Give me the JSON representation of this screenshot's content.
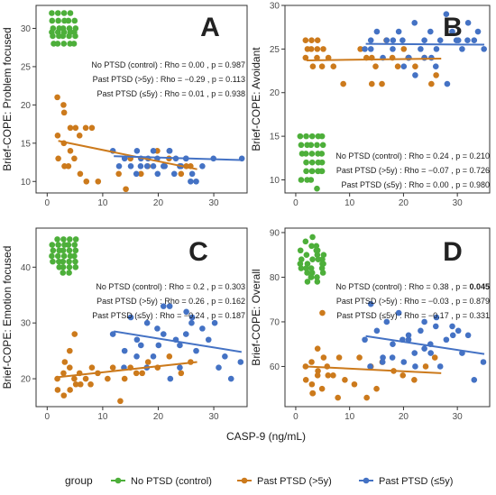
{
  "chart_data": {
    "xlabel": "CASP-9 (ng/mL)",
    "legend": {
      "title": "group",
      "position": "bottom",
      "entries": [
        "No PTSD (control)",
        "Past PTSD (>5y)",
        "Past PTSD (≤5y)"
      ]
    },
    "colors": {
      "No PTSD (control)": "#4daf3a",
      "Past PTSD (>5y)": "#cc7a1c",
      "Past PTSD (≤5y)": "#4472c4"
    },
    "panels": [
      {
        "letter": "A",
        "type": "scatter",
        "ylabel": "Brief-COPE: Problem focused",
        "xlim": [
          -2,
          36
        ],
        "ylim": [
          8.5,
          33
        ],
        "xticks": [
          0,
          10,
          20,
          30
        ],
        "yticks": [
          10,
          15,
          20,
          25,
          30
        ],
        "annotations": [
          {
            "pre": "No PTSD (control) : Rho = 0.00 , p = ",
            "p": "0.987",
            "bold": false
          },
          {
            "pre": "Past PTSD (>5y) : Rho = −0.29 , p = ",
            "p": "0.113",
            "bold": false
          },
          {
            "pre": "Past PTSD (≤5y) : Rho = 0.01 , p = ",
            "p": "0.938",
            "bold": false
          }
        ],
        "series": [
          {
            "name": "No PTSD (control)",
            "x": [
              1,
              2,
              3,
              4,
              1,
              2,
              3,
              4,
              5,
              1,
              2,
              3,
              4,
              5,
              1,
              2,
              3,
              4,
              5,
              1,
              2,
              3,
              4,
              5,
              1,
              2,
              3,
              4,
              5
            ],
            "y": [
              32,
              32,
              32,
              32,
              31,
              31,
              31,
              31,
              31,
              30,
              30,
              30,
              30,
              30,
              29.5,
              29.5,
              29.5,
              29.5,
              29.5,
              29,
              29,
              29,
              29,
              29,
              28,
              28,
              28,
              28,
              28
            ],
            "fit": null
          },
          {
            "name": "Past PTSD (>5y)",
            "x": [
              2,
              3,
              3,
              4,
              2,
              3,
              5,
              6,
              7,
              8,
              4,
              5,
              2,
              3,
              4,
              6,
              7,
              9,
              13,
              15,
              18,
              20,
              22,
              25,
              14,
              17,
              21,
              24,
              26
            ],
            "y": [
              21,
              20,
              19,
              17,
              16,
              15,
              17,
              16,
              17,
              17,
              14,
              13,
              13,
              12,
              12,
              11,
              10,
              10,
              11,
              13,
              12,
              14,
              13,
              12,
              9,
              11,
              12,
              11,
              12
            ],
            "fit": {
              "x": [
                2,
                27
              ],
              "y": [
                15.3,
                11.6
              ]
            }
          },
          {
            "name": "Past PTSD (≤5y)",
            "x": [
              12,
              14,
              15,
              16,
              17,
              18,
              19,
              20,
              21,
              22,
              23,
              24,
              25,
              26,
              27,
              28,
              16,
              18,
              20,
              22,
              24,
              26,
              30,
              35,
              21,
              23,
              25,
              19,
              17,
              13
            ],
            "y": [
              14,
              13,
              12,
              14,
              13,
              12,
              14,
              13,
              12,
              14,
              13,
              12,
              13,
              11,
              10,
              12,
              11,
              13,
              11,
              14,
              12,
              10,
              13,
              13,
              12,
              11,
              13,
              12,
              12,
              12
            ],
            "fit": {
              "x": [
                12,
                35
              ],
              "y": [
                13.3,
                12.8
              ]
            }
          }
        ]
      },
      {
        "letter": "B",
        "type": "scatter",
        "ylabel": "Brief-COPE: Avoidant",
        "xlim": [
          -2,
          36
        ],
        "ylim": [
          8.5,
          30
        ],
        "xticks": [
          0,
          10,
          20,
          30
        ],
        "yticks": [
          10,
          15,
          20,
          25,
          30
        ],
        "annotations": [
          {
            "pre": "No PTSD (control) : Rho = 0.24 , p = ",
            "p": "0.210",
            "bold": false
          },
          {
            "pre": "Past PTSD (>5y) : Rho = −0.07 , p = ",
            "p": "0.726",
            "bold": false
          },
          {
            "pre": "Past PTSD (≤5y) : Rho = 0.00 , p = ",
            "p": "0.980",
            "bold": false
          }
        ],
        "series": [
          {
            "name": "No PTSD (control)",
            "x": [
              1,
              2,
              3,
              4,
              5,
              1,
              2,
              3,
              4,
              5,
              1,
              2,
              3,
              4,
              5,
              2,
              3,
              4,
              5,
              3,
              4,
              5,
              2,
              3,
              4,
              5,
              1,
              2,
              3,
              4
            ],
            "y": [
              15,
              15,
              15,
              15,
              15,
              14,
              14,
              14,
              14,
              14,
              13,
              13,
              13,
              13,
              13,
              12,
              12,
              12,
              12,
              11,
              11,
              11,
              11,
              11,
              11,
              11,
              10,
              10,
              10,
              9
            ],
            "fit": null
          },
          {
            "name": "Past PTSD (>5y)",
            "x": [
              2,
              3,
              4,
              2,
              3,
              4,
              5,
              2,
              4,
              6,
              3,
              5,
              7,
              13,
              15,
              18,
              20,
              22,
              24,
              12,
              14,
              17,
              19,
              26,
              25,
              21,
              16,
              14,
              9
            ],
            "y": [
              26,
              26,
              26,
              25,
              25,
              25,
              25,
              24,
              24,
              24,
              23,
              23,
              23,
              24,
              23,
              24,
              25,
              23,
              24,
              25,
              24,
              26,
              23,
              22,
              21,
              24,
              21,
              21,
              21
            ],
            "fit": {
              "x": [
                2,
                27
              ],
              "y": [
                23.7,
                23.9
              ]
            }
          },
          {
            "name": "Past PTSD (≤5y)",
            "x": [
              13,
              14,
              15,
              16,
              17,
              18,
              19,
              20,
              21,
              22,
              23,
              24,
              25,
              26,
              27,
              28,
              29,
              30,
              31,
              32,
              33,
              34,
              35,
              20,
              22,
              24,
              26,
              28,
              30,
              14,
              18,
              25,
              32,
              21
            ],
            "y": [
              25,
              26,
              27,
              24,
              26,
              25,
              27,
              26,
              24,
              28,
              25,
              26,
              27,
              25,
              26,
              29,
              27,
              26,
              25,
              28,
              26,
              27,
              25,
              23,
              22,
              24,
              23,
              21,
              26,
              25,
              26,
              24,
              26,
              24
            ],
            "fit": {
              "x": [
                13,
                35
              ],
              "y": [
                25.6,
                25.5
              ]
            }
          }
        ]
      },
      {
        "letter": "C",
        "type": "scatter",
        "ylabel": "Brief-COPE: Emotion focused",
        "xlim": [
          -2,
          36
        ],
        "ylim": [
          15,
          47
        ],
        "xticks": [
          0,
          10,
          20,
          30
        ],
        "yticks": [
          20,
          30,
          40
        ],
        "annotations": [
          {
            "pre": "No PTSD (control) : Rho = 0.2 , p = ",
            "p": "0.303",
            "bold": false
          },
          {
            "pre": "Past PTSD (>5y) : Rho = 0.26 , p = ",
            "p": "0.162",
            "bold": false
          },
          {
            "pre": "Past PTSD (≤5y) : Rho = −0.24 , p = ",
            "p": "0.187",
            "bold": false
          }
        ],
        "series": [
          {
            "name": "No PTSD (control)",
            "x": [
              2,
              3,
              4,
              5,
              1,
              2,
              3,
              4,
              5,
              1,
              2,
              3,
              4,
              5,
              1,
              2,
              3,
              4,
              5,
              1,
              2,
              3,
              4,
              5,
              2,
              3,
              4,
              5,
              3,
              4
            ],
            "y": [
              45,
              45,
              45,
              45,
              44,
              44,
              44,
              44,
              44,
              43,
              43,
              43,
              43,
              43,
              42,
              42,
              42,
              42,
              42,
              41,
              41,
              41,
              41,
              41,
              40,
              40,
              40,
              40,
              39,
              39
            ],
            "fit": null
          },
          {
            "name": "Past PTSD (>5y)",
            "x": [
              2,
              3,
              4,
              5,
              2,
              3,
              4,
              6,
              7,
              8,
              3,
              5,
              6,
              9,
              12,
              14,
              16,
              18,
              20,
              22,
              24,
              26,
              5,
              4,
              13,
              11,
              15,
              17,
              8
            ],
            "y": [
              20,
              21,
              22,
              19,
              18,
              17,
              18,
              21,
              20,
              22,
              23,
              20,
              19,
              21,
              22,
              20,
              21,
              23,
              22,
              24,
              21,
              23,
              28,
              25,
              16,
              20,
              22,
              21,
              19
            ],
            "fit": {
              "x": [
                2,
                27
              ],
              "y": [
                20.3,
                23.0
              ]
            }
          },
          {
            "name": "Past PTSD (≤5y)",
            "x": [
              12,
              14,
              15,
              16,
              17,
              18,
              19,
              20,
              21,
              22,
              23,
              24,
              25,
              26,
              27,
              28,
              29,
              30,
              31,
              32,
              33,
              35,
              18,
              20,
              22,
              24,
              26,
              16,
              14,
              21,
              25
            ],
            "y": [
              28,
              25,
              31,
              27,
              26,
              30,
              24,
              29,
              33,
              33,
              27,
              26,
              28,
              31,
              25,
              29,
              27,
              30,
              22,
              24,
              20,
              23,
              22,
              26,
              20,
              22,
              30,
              24,
              22,
              28,
              32
            ],
            "fit": {
              "x": [
                12,
                35
              ],
              "y": [
                28.5,
                24.8
              ]
            }
          }
        ]
      },
      {
        "letter": "D",
        "type": "scatter",
        "ylabel": "Brief-COPE: Overall",
        "xlim": [
          -2,
          36
        ],
        "ylim": [
          51,
          91
        ],
        "xticks": [
          0,
          10,
          20,
          30
        ],
        "yticks": [
          60,
          70,
          80,
          90
        ],
        "annotations": [
          {
            "pre": "No PTSD (control) : Rho = 0.38 , p = ",
            "p": "0.045",
            "bold": true
          },
          {
            "pre": "Past PTSD (>5y) : Rho = −0.03 , p = ",
            "p": "0.879",
            "bold": false
          },
          {
            "pre": "Past PTSD (≤5y) : Rho = −0.17 , p = ",
            "p": "0.331",
            "bold": false
          }
        ],
        "series": [
          {
            "name": "No PTSD (control)",
            "x": [
              2,
              3,
              4,
              5,
              1,
              2,
              3,
              4,
              5,
              1,
              2,
              3,
              4,
              5,
              1,
              2,
              3,
              4,
              5,
              1,
              2,
              3,
              4,
              5,
              2,
              3,
              4,
              3,
              4,
              5
            ],
            "y": [
              88,
              87,
              86,
              85,
              86,
              85,
              84,
              86,
              84,
              84,
              83,
              82,
              85,
              83,
              83,
              82,
              81,
              84,
              82,
              82,
              81,
              80,
              80,
              81,
              79,
              80,
              79,
              89,
              87,
              83
            ],
            "fit": null
          },
          {
            "name": "Past PTSD (>5y)",
            "x": [
              2,
              3,
              4,
              5,
              2,
              3,
              4,
              6,
              7,
              8,
              3,
              5,
              6,
              9,
              12,
              14,
              16,
              18,
              20,
              22,
              24,
              26,
              5,
              4,
              13,
              11,
              15,
              3,
              8
            ],
            "y": [
              60,
              61,
              58,
              62,
              57,
              56,
              59,
              60,
              58,
              62,
              54,
              55,
              58,
              57,
              62,
              60,
              61,
              59,
              58,
              57,
              60,
              62,
              72,
              64,
              53,
              56,
              55,
              54,
              53
            ],
            "fit": {
              "x": [
                2,
                27
              ],
              "y": [
                60.0,
                58.5
              ]
            }
          },
          {
            "name": "Past PTSD (≤5y)",
            "x": [
              13,
              14,
              15,
              16,
              17,
              18,
              19,
              20,
              21,
              22,
              23,
              24,
              25,
              26,
              27,
              28,
              29,
              30,
              31,
              32,
              33,
              35,
              18,
              20,
              22,
              24,
              26,
              16,
              14,
              21,
              25,
              29
            ],
            "y": [
              66,
              74,
              68,
              62,
              70,
              65,
              72,
              66,
              67,
              63,
              68,
              70,
              65,
              71,
              60,
              66,
              69,
              68,
              63,
              67,
              57,
              61,
              62,
              61,
              60,
              64,
              69,
              61,
              60,
              66,
              63,
              67
            ],
            "fit": {
              "x": [
                13,
                35
              ],
              "y": [
                66.8,
                62.8
              ]
            }
          }
        ]
      }
    ]
  }
}
